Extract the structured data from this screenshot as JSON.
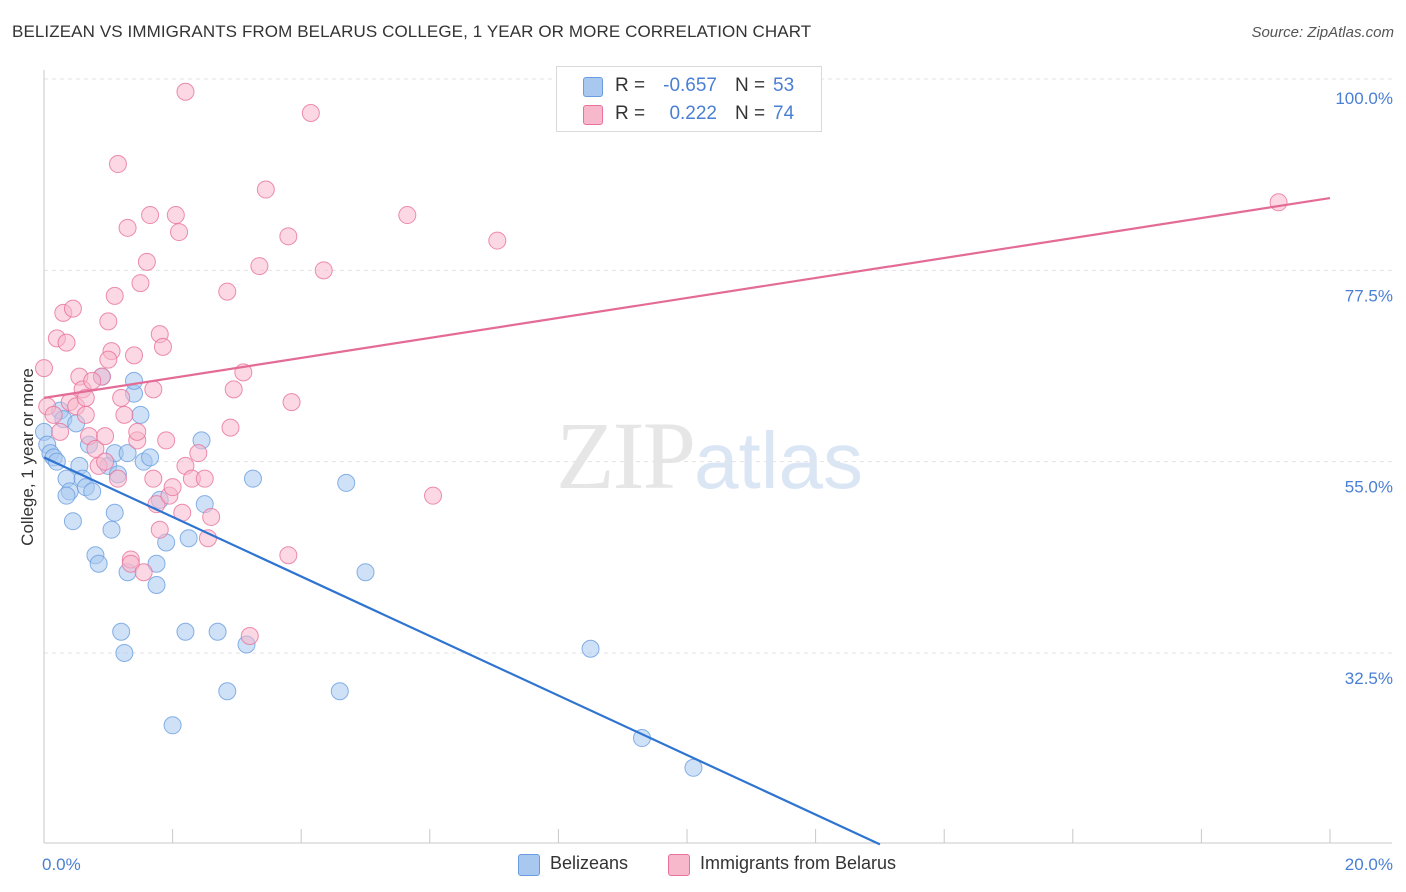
{
  "header": {
    "title": "BELIZEAN VS IMMIGRANTS FROM BELARUS COLLEGE, 1 YEAR OR MORE CORRELATION CHART",
    "source": "Source: ZipAtlas.com"
  },
  "watermark": {
    "zip": "ZIP",
    "atlas": "atlas"
  },
  "legend_top": {
    "rows": [
      {
        "r_label": "R =",
        "r_value": "-0.657",
        "n_label": "N =",
        "n_value": "53",
        "color": "#a8c8f0"
      },
      {
        "r_label": "R =",
        "r_value": "0.222",
        "n_label": "N =",
        "n_value": "74",
        "color": "#f7b8cc"
      }
    ]
  },
  "chart_data": {
    "type": "scatter",
    "title": "BELIZEAN VS IMMIGRANTS FROM BELARUS COLLEGE, 1 YEAR OR MORE CORRELATION CHART",
    "xlabel": "",
    "ylabel": "College, 1 year or more",
    "xlim": [
      0,
      20
    ],
    "ylim": [
      10,
      105
    ],
    "x_tick_labels": [
      "0.0%",
      "20.0%"
    ],
    "y_ticks": [
      32.5,
      55.0,
      77.5,
      100.0
    ],
    "y_tick_labels": [
      "32.5%",
      "55.0%",
      "77.5%",
      "100.0%"
    ],
    "series": [
      {
        "name": "Belizeans",
        "color": "#6a9de0",
        "fill": "#a8c8f0",
        "trend": {
          "x": [
            0,
            13
          ],
          "y": [
            55.5,
            10
          ]
        },
        "points": [
          [
            0.0,
            58.5
          ],
          [
            0.05,
            57.0
          ],
          [
            0.1,
            56.0
          ],
          [
            0.15,
            55.5
          ],
          [
            0.2,
            55.0
          ],
          [
            0.25,
            61.0
          ],
          [
            0.3,
            60.0
          ],
          [
            0.35,
            53.0
          ],
          [
            0.4,
            51.5
          ],
          [
            0.45,
            48.0
          ],
          [
            0.5,
            59.5
          ],
          [
            0.55,
            54.5
          ],
          [
            0.6,
            53.0
          ],
          [
            0.65,
            52.0
          ],
          [
            0.7,
            57.0
          ],
          [
            0.75,
            51.5
          ],
          [
            0.8,
            44.0
          ],
          [
            0.85,
            43.0
          ],
          [
            0.9,
            65.0
          ],
          [
            1.0,
            54.5
          ],
          [
            1.1,
            56.0
          ],
          [
            1.1,
            49.0
          ],
          [
            1.15,
            53.5
          ],
          [
            1.2,
            35.0
          ],
          [
            1.25,
            32.5
          ],
          [
            1.3,
            42.0
          ],
          [
            1.3,
            56.0
          ],
          [
            1.4,
            63.0
          ],
          [
            1.4,
            64.5
          ],
          [
            1.5,
            60.5
          ],
          [
            1.55,
            55.0
          ],
          [
            1.65,
            55.5
          ],
          [
            1.75,
            43.0
          ],
          [
            1.75,
            40.5
          ],
          [
            1.8,
            50.5
          ],
          [
            1.9,
            45.5
          ],
          [
            2.0,
            24.0
          ],
          [
            2.2,
            35.0
          ],
          [
            2.25,
            46.0
          ],
          [
            2.45,
            57.5
          ],
          [
            2.5,
            50.0
          ],
          [
            2.7,
            35.0
          ],
          [
            2.85,
            28.0
          ],
          [
            3.15,
            33.5
          ],
          [
            3.25,
            53.0
          ],
          [
            4.6,
            28.0
          ],
          [
            4.7,
            52.5
          ],
          [
            5.0,
            42.0
          ],
          [
            8.5,
            33.0
          ],
          [
            9.3,
            22.5
          ],
          [
            10.1,
            19.0
          ],
          [
            0.35,
            51.0
          ],
          [
            1.05,
            47.0
          ]
        ]
      },
      {
        "name": "Immigrants from Belarus",
        "color": "#e8729b",
        "fill": "#f7b8cc",
        "trend": {
          "x": [
            0,
            20
          ],
          "y": [
            62.5,
            86
          ]
        },
        "points": [
          [
            0.0,
            66.0
          ],
          [
            0.05,
            61.5
          ],
          [
            0.15,
            60.5
          ],
          [
            0.2,
            69.5
          ],
          [
            0.3,
            72.5
          ],
          [
            0.35,
            69.0
          ],
          [
            0.4,
            62.0
          ],
          [
            0.45,
            73.0
          ],
          [
            0.5,
            61.5
          ],
          [
            0.55,
            65.0
          ],
          [
            0.6,
            63.5
          ],
          [
            0.65,
            62.5
          ],
          [
            0.7,
            58.0
          ],
          [
            0.8,
            56.5
          ],
          [
            0.85,
            54.5
          ],
          [
            0.9,
            65.0
          ],
          [
            0.95,
            58.0
          ],
          [
            1.0,
            71.5
          ],
          [
            1.05,
            68.0
          ],
          [
            1.0,
            67.0
          ],
          [
            1.1,
            74.5
          ],
          [
            1.15,
            53.0
          ],
          [
            1.2,
            62.5
          ],
          [
            1.25,
            60.5
          ],
          [
            1.3,
            82.5
          ],
          [
            1.35,
            43.5
          ],
          [
            1.35,
            43.0
          ],
          [
            1.4,
            67.5
          ],
          [
            1.45,
            57.5
          ],
          [
            1.5,
            76.0
          ],
          [
            1.55,
            42.0
          ],
          [
            1.6,
            78.5
          ],
          [
            1.65,
            84.0
          ],
          [
            1.7,
            53.0
          ],
          [
            1.75,
            50.0
          ],
          [
            1.8,
            47.0
          ],
          [
            1.8,
            70.0
          ],
          [
            1.85,
            68.5
          ],
          [
            1.9,
            57.5
          ],
          [
            1.95,
            51.0
          ],
          [
            2.0,
            52.0
          ],
          [
            2.05,
            84.0
          ],
          [
            2.1,
            82.0
          ],
          [
            2.2,
            98.5
          ],
          [
            2.2,
            54.5
          ],
          [
            2.3,
            53.0
          ],
          [
            2.4,
            56.0
          ],
          [
            2.5,
            53.0
          ],
          [
            2.55,
            46.0
          ],
          [
            2.6,
            48.5
          ],
          [
            2.85,
            75.0
          ],
          [
            2.9,
            59.0
          ],
          [
            2.95,
            63.5
          ],
          [
            3.1,
            65.5
          ],
          [
            3.2,
            34.5
          ],
          [
            3.35,
            78.0
          ],
          [
            3.45,
            87.0
          ],
          [
            3.8,
            81.5
          ],
          [
            3.8,
            44.0
          ],
          [
            3.85,
            62.0
          ],
          [
            4.15,
            96.0
          ],
          [
            4.35,
            77.5
          ],
          [
            5.65,
            84.0
          ],
          [
            6.05,
            51.0
          ],
          [
            7.05,
            81.0
          ],
          [
            19.2,
            85.5
          ],
          [
            1.15,
            90.0
          ],
          [
            0.65,
            60.5
          ],
          [
            0.25,
            58.5
          ],
          [
            0.75,
            64.5
          ],
          [
            1.45,
            58.5
          ],
          [
            1.7,
            63.5
          ],
          [
            2.15,
            49.0
          ],
          [
            0.95,
            55.0
          ]
        ]
      }
    ],
    "legend": [
      {
        "label": "Belizeans",
        "color": "#a8c8f0"
      },
      {
        "label": "Immigrants from Belarus",
        "color": "#f7b8cc"
      }
    ]
  }
}
